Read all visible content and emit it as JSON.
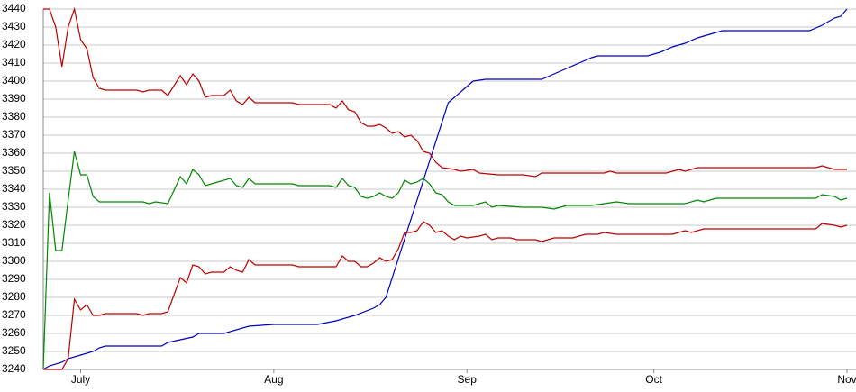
{
  "chart_data": {
    "type": "line",
    "xlim": [
      0,
      129
    ],
    "ylim": [
      3240,
      3440
    ],
    "xticks": [
      {
        "value": 6,
        "label": "July"
      },
      {
        "value": 37,
        "label": "Aug"
      },
      {
        "value": 68,
        "label": "Sep"
      },
      {
        "value": 98,
        "label": "Oct"
      },
      {
        "value": 129,
        "label": "Nov"
      }
    ],
    "yticks": [
      3240,
      3250,
      3260,
      3270,
      3280,
      3290,
      3300,
      3310,
      3320,
      3330,
      3340,
      3350,
      3360,
      3370,
      3380,
      3390,
      3400,
      3410,
      3420,
      3430,
      3440
    ],
    "grid": true,
    "series": [
      {
        "color": "#0000bb",
        "x": [
          0,
          1,
          3,
          4,
          6,
          8,
          9,
          10,
          19,
          20,
          24,
          25,
          29,
          33,
          37,
          44,
          47,
          50,
          53,
          54,
          55,
          65,
          67,
          69,
          71,
          80,
          82,
          84,
          86,
          88,
          89,
          97,
          99,
          101,
          103,
          105,
          107,
          109,
          123,
          125,
          127,
          128,
          129
        ],
        "values": [
          3240,
          3242,
          3244,
          3246,
          3248,
          3250,
          3252,
          3253,
          3253,
          3255,
          3258,
          3260,
          3260,
          3264,
          3265,
          3265,
          3267,
          3270,
          3274,
          3276,
          3280,
          3388,
          3394,
          3400,
          3401,
          3401,
          3404,
          3407,
          3410,
          3413,
          3414,
          3414,
          3416,
          3419,
          3421,
          3424,
          3426,
          3428,
          3428,
          3431,
          3435,
          3436,
          3440
        ]
      },
      {
        "color": "#bb0000",
        "x": [
          0,
          1,
          2,
          3,
          4,
          5,
          6,
          7,
          8,
          9,
          10,
          15,
          16,
          17,
          19,
          20,
          22,
          23,
          24,
          25,
          26,
          27,
          29,
          30,
          31,
          32,
          33,
          34,
          40,
          41,
          46,
          47,
          48,
          49,
          50,
          51,
          52,
          53,
          54,
          55,
          56,
          57,
          58,
          59,
          60,
          61,
          62,
          63,
          64,
          66,
          67,
          69,
          70,
          73,
          77,
          79,
          80,
          90,
          91,
          92,
          100,
          102,
          103,
          105,
          124,
          125,
          127,
          129
        ],
        "values": [
          3440,
          3440,
          3430,
          3408,
          3430,
          3440,
          3423,
          3418,
          3402,
          3396,
          3395,
          3395,
          3394,
          3395,
          3395,
          3392,
          3403,
          3398,
          3404,
          3400,
          3391,
          3392,
          3392,
          3395,
          3389,
          3387,
          3391,
          3388,
          3388,
          3387,
          3387,
          3385,
          3389,
          3384,
          3383,
          3377,
          3375,
          3375,
          3376,
          3374,
          3371,
          3372,
          3369,
          3370,
          3367,
          3361,
          3360,
          3355,
          3352,
          3351,
          3350,
          3351,
          3349,
          3348,
          3348,
          3347,
          3349,
          3349,
          3350,
          3349,
          3349,
          3351,
          3350,
          3352,
          3352,
          3353,
          3351,
          3351
        ]
      },
      {
        "color": "#008800",
        "x": [
          0,
          1,
          2,
          3,
          4,
          5,
          6,
          7,
          8,
          9,
          16,
          17,
          18,
          20,
          22,
          23,
          24,
          25,
          26,
          27,
          30,
          31,
          32,
          33,
          34,
          40,
          41,
          46,
          47,
          48,
          49,
          50,
          51,
          52,
          53,
          54,
          55,
          56,
          57,
          58,
          59,
          60,
          61,
          62,
          63,
          64,
          65,
          66,
          67,
          69,
          70,
          71,
          72,
          73,
          77,
          80,
          82,
          84,
          88,
          90,
          92,
          94,
          103,
          105,
          106,
          108,
          124,
          125,
          127,
          128,
          129
        ],
        "values": [
          3240,
          3338,
          3306,
          3306,
          3334,
          3361,
          3348,
          3348,
          3336,
          3333,
          3333,
          3332,
          3333,
          3332,
          3347,
          3343,
          3351,
          3348,
          3342,
          3343,
          3346,
          3342,
          3341,
          3346,
          3343,
          3343,
          3342,
          3342,
          3341,
          3346,
          3342,
          3341,
          3336,
          3335,
          3336,
          3338,
          3336,
          3335,
          3338,
          3345,
          3343,
          3344,
          3346,
          3343,
          3338,
          3337,
          3333,
          3331,
          3331,
          3331,
          3332,
          3333,
          3330,
          3331,
          3330,
          3330,
          3329,
          3331,
          3331,
          3332,
          3333,
          3332,
          3332,
          3334,
          3333,
          3335,
          3335,
          3337,
          3336,
          3334,
          3335
        ]
      },
      {
        "color": "#bb0000",
        "x": [
          0,
          3,
          4,
          5,
          6,
          7,
          8,
          9,
          10,
          15,
          16,
          17,
          19,
          20,
          22,
          23,
          24,
          25,
          26,
          27,
          29,
          30,
          31,
          32,
          33,
          34,
          40,
          41,
          46,
          47,
          48,
          49,
          50,
          51,
          52,
          53,
          54,
          55,
          56,
          57,
          58,
          59,
          60,
          61,
          62,
          63,
          64,
          65,
          66,
          67,
          68,
          70,
          71,
          72,
          73,
          75,
          76,
          79,
          80,
          82,
          85,
          87,
          89,
          90,
          92,
          101,
          103,
          104,
          106,
          124,
          125,
          127,
          128,
          129
        ],
        "values": [
          3240,
          3240,
          3246,
          3279,
          3273,
          3276,
          3270,
          3270,
          3271,
          3271,
          3270,
          3271,
          3271,
          3272,
          3291,
          3288,
          3298,
          3297,
          3293,
          3294,
          3294,
          3297,
          3295,
          3294,
          3301,
          3298,
          3298,
          3297,
          3297,
          3297,
          3303,
          3300,
          3300,
          3297,
          3297,
          3299,
          3302,
          3300,
          3301,
          3307,
          3316,
          3316,
          3317,
          3322,
          3320,
          3316,
          3317,
          3314,
          3312,
          3314,
          3313,
          3314,
          3315,
          3312,
          3313,
          3313,
          3312,
          3312,
          3311,
          3313,
          3313,
          3315,
          3315,
          3316,
          3315,
          3315,
          3317,
          3316,
          3318,
          3318,
          3321,
          3320,
          3319,
          3320
        ]
      }
    ]
  }
}
